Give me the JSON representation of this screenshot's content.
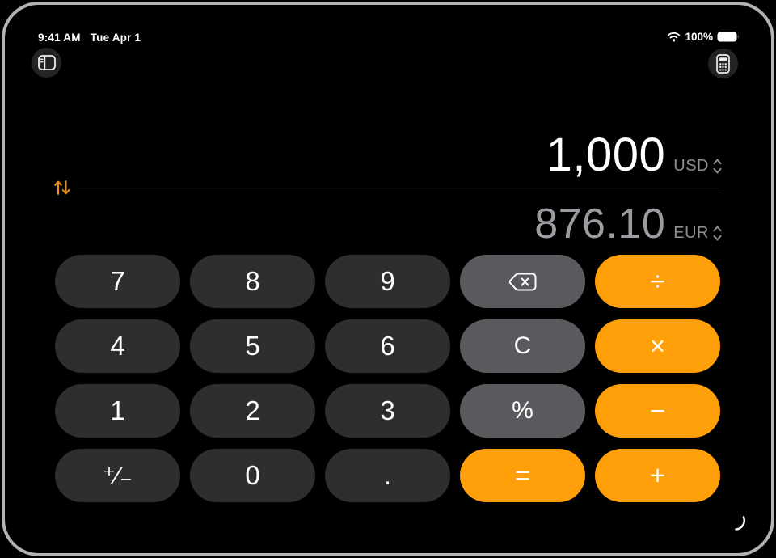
{
  "status_bar": {
    "time": "9:41 AM",
    "date": "Tue Apr 1",
    "battery_percent": "100%"
  },
  "toolbar": {
    "sidebar_button": "show-sidebar",
    "calculator_button": "calculator-mode-switcher"
  },
  "converter": {
    "primary": {
      "amount": "1,000",
      "currency": "USD"
    },
    "secondary": {
      "amount": "876.10",
      "currency": "EUR"
    }
  },
  "keypad": {
    "rows": [
      [
        {
          "name": "key-7",
          "label": "7",
          "style": "digit"
        },
        {
          "name": "key-8",
          "label": "8",
          "style": "digit"
        },
        {
          "name": "key-9",
          "label": "9",
          "style": "digit"
        },
        {
          "name": "key-backspace",
          "icon": "backspace-icon",
          "style": "function"
        },
        {
          "name": "key-divide",
          "label": "÷",
          "style": "operator"
        }
      ],
      [
        {
          "name": "key-4",
          "label": "4",
          "style": "digit"
        },
        {
          "name": "key-5",
          "label": "5",
          "style": "digit"
        },
        {
          "name": "key-6",
          "label": "6",
          "style": "digit"
        },
        {
          "name": "key-clear",
          "label": "C",
          "style": "function"
        },
        {
          "name": "key-multiply",
          "label": "×",
          "style": "operator"
        }
      ],
      [
        {
          "name": "key-1",
          "label": "1",
          "style": "digit"
        },
        {
          "name": "key-2",
          "label": "2",
          "style": "digit"
        },
        {
          "name": "key-3",
          "label": "3",
          "style": "digit"
        },
        {
          "name": "key-percent",
          "label": "%",
          "style": "function"
        },
        {
          "name": "key-subtract",
          "label": "−",
          "style": "operator"
        }
      ],
      [
        {
          "name": "key-plusminus",
          "label": "⁺∕₋",
          "style": "digit"
        },
        {
          "name": "key-0",
          "label": "0",
          "style": "digit"
        },
        {
          "name": "key-decimal",
          "label": ".",
          "style": "digit"
        },
        {
          "name": "key-equals",
          "label": "=",
          "style": "operator"
        },
        {
          "name": "key-add",
          "label": "+",
          "style": "operator"
        }
      ]
    ]
  },
  "colors": {
    "accent_orange": "#ff9f0a",
    "digit_key": "#2e2e30",
    "function_key": "#5a5a5e",
    "secondary_text": "#9b9ba1",
    "currency_label": "#8e8e93",
    "background": "#000000",
    "frame_border": "#b2b2b4"
  }
}
